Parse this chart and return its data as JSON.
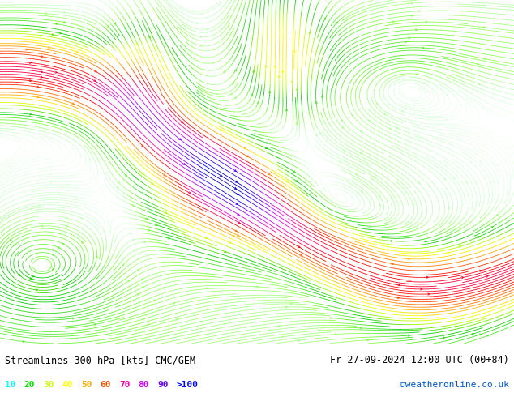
{
  "title_left": "Streamlines 300 hPa [kts] CMC/GEM",
  "title_right": "Fr 27-09-2024 12:00 UTC (00+84)",
  "credit": "©weatheronline.co.uk",
  "legend_values": [
    "10",
    "20",
    "30",
    "40",
    "50",
    "60",
    "70",
    "80",
    "90",
    ">100"
  ],
  "legend_colors": [
    "#00ffff",
    "#00dd00",
    "#ccff00",
    "#ffff00",
    "#ffaa00",
    "#ff5500",
    "#ff00aa",
    "#cc00ff",
    "#6600ff",
    "#0000ff"
  ],
  "bg_color": "#ffffff",
  "fig_width": 6.34,
  "fig_height": 4.9,
  "dpi": 100,
  "bottom_bar_height": 0.135,
  "seed": 12345,
  "speed_max": 120
}
